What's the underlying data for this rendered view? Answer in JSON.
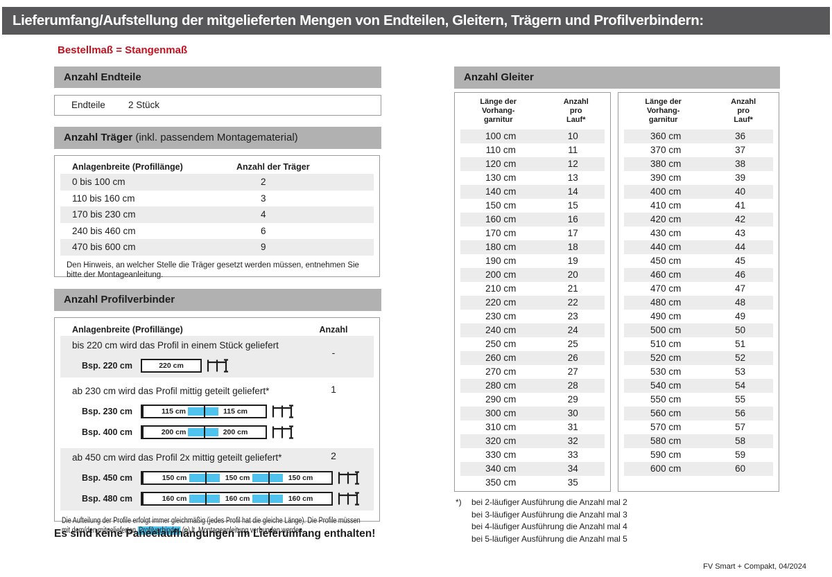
{
  "page": {
    "title": "Lieferumfang/Aufstellung der mitgelieferten Mengen von Endteilen, Gleitern, Trägern und Profilverbindern:",
    "subtitle": "Bestellmaß = Stangenmaß",
    "footer": "FV Smart + Compakt, 04/2024"
  },
  "colors": {
    "titlebar_bg": "#58585a",
    "section_bar_bg": "#b1b1b1",
    "row_stripe": "#ececec",
    "accent_blue": "#4fc2ee",
    "accent_red": "#c5121f"
  },
  "endteile": {
    "section_title": "Anzahl Endteile",
    "label": "Endteile",
    "value": "2 Stück"
  },
  "traeger": {
    "section_title": "Anzahl Träger",
    "section_title_suffix": " (inkl. passendem Montagematerial)",
    "col1": "Anlagenbreite (Profillänge)",
    "col2": "Anzahl der Träger",
    "rows": [
      [
        "0 bis 100 cm",
        "2"
      ],
      [
        "110 bis 160 cm",
        "3"
      ],
      [
        "170 bis 230 cm",
        "4"
      ],
      [
        "240 bis 460 cm",
        "6"
      ],
      [
        "470 bis 600 cm",
        "9"
      ]
    ],
    "note": "Den Hinweis, an welcher Stelle die Träger gesetzt werden müssen, entnehmen Sie bitte der Montageanleitung."
  },
  "profilverbinder": {
    "section_title": "Anzahl Profilverbinder",
    "col1": "Anlagenbreite (Profillänge)",
    "col2": "Anzahl",
    "blocks": [
      {
        "text": "bis 220 cm wird das Profil in einem Stück geliefert",
        "count": "-",
        "examples": [
          {
            "label": "Bsp. 220 cm",
            "segments": [
              "220 cm"
            ]
          }
        ]
      },
      {
        "text": "ab 230 cm wird das Profil mittig geteilt geliefert*",
        "count": "1",
        "examples": [
          {
            "label": "Bsp. 230 cm",
            "segments": [
              "115 cm",
              "115 cm"
            ]
          },
          {
            "label": "Bsp. 400 cm",
            "segments": [
              "200 cm",
              "200 cm"
            ]
          }
        ]
      },
      {
        "text": "ab 450 cm wird das Profil 2x mittig geteilt geliefert*",
        "count": "2",
        "examples": [
          {
            "label": "Bsp. 450 cm",
            "segments": [
              "150 cm",
              "150 cm",
              "150 cm"
            ]
          },
          {
            "label": "Bsp. 480 cm",
            "segments": [
              "160 cm",
              "160 cm",
              "160 cm"
            ]
          }
        ]
      }
    ],
    "note_before": "Die Aufteilung der Profile erfolgt immer gleichmäßig (jedes Profil hat die gleiche Länge). Die Profile müssen mit dem/den mitgelieferten ",
    "note_highlight": "Profilverbinder",
    "note_after": " (n) lt. Montageanleitung verbunden werden."
  },
  "paneel_note": "Es sind keine Paneelaufhängungen im Lieferumfang enthalten!",
  "gleiter": {
    "section_title": "Anzahl Gleiter",
    "col1": "Länge der\nVorhang-\ngarnitur",
    "col2": "Anzahl\npro\nLauf*",
    "table1": [
      [
        "100 cm",
        "10"
      ],
      [
        "110 cm",
        "11"
      ],
      [
        "120 cm",
        "12"
      ],
      [
        "130 cm",
        "13"
      ],
      [
        "140 cm",
        "14"
      ],
      [
        "150 cm",
        "15"
      ],
      [
        "160 cm",
        "16"
      ],
      [
        "170 cm",
        "17"
      ],
      [
        "180 cm",
        "18"
      ],
      [
        "190 cm",
        "19"
      ],
      [
        "200 cm",
        "20"
      ],
      [
        "210 cm",
        "21"
      ],
      [
        "220 cm",
        "22"
      ],
      [
        "230 cm",
        "23"
      ],
      [
        "240 cm",
        "24"
      ],
      [
        "250 cm",
        "25"
      ],
      [
        "260 cm",
        "26"
      ],
      [
        "270 cm",
        "27"
      ],
      [
        "280 cm",
        "28"
      ],
      [
        "290 cm",
        "29"
      ],
      [
        "300 cm",
        "30"
      ],
      [
        "310 cm",
        "31"
      ],
      [
        "320 cm",
        "32"
      ],
      [
        "330 cm",
        "33"
      ],
      [
        "340 cm",
        "34"
      ],
      [
        "350 cm",
        "35"
      ]
    ],
    "table2": [
      [
        "360 cm",
        "36"
      ],
      [
        "370 cm",
        "37"
      ],
      [
        "380 cm",
        "38"
      ],
      [
        "390 cm",
        "39"
      ],
      [
        "400 cm",
        "40"
      ],
      [
        "410 cm",
        "41"
      ],
      [
        "420 cm",
        "42"
      ],
      [
        "430 cm",
        "43"
      ],
      [
        "440 cm",
        "44"
      ],
      [
        "450 cm",
        "45"
      ],
      [
        "460 cm",
        "46"
      ],
      [
        "470 cm",
        "47"
      ],
      [
        "480 cm",
        "48"
      ],
      [
        "490 cm",
        "49"
      ],
      [
        "500 cm",
        "50"
      ],
      [
        "510 cm",
        "51"
      ],
      [
        "520 cm",
        "52"
      ],
      [
        "530 cm",
        "53"
      ],
      [
        "540 cm",
        "54"
      ],
      [
        "550 cm",
        "55"
      ],
      [
        "560 cm",
        "56"
      ],
      [
        "570 cm",
        "57"
      ],
      [
        "580 cm",
        "58"
      ],
      [
        "590 cm",
        "59"
      ],
      [
        "600 cm",
        "60"
      ]
    ],
    "footnote_marker": "*)",
    "footnotes": [
      "bei 2-läufiger Ausführung die Anzahl mal 2",
      "bei 3-läufiger Ausführung die Anzahl mal 3",
      "bei 4-läufiger Ausführung die Anzahl mal 4",
      "bei 5-läufiger Ausführung die Anzahl mal 5"
    ]
  }
}
